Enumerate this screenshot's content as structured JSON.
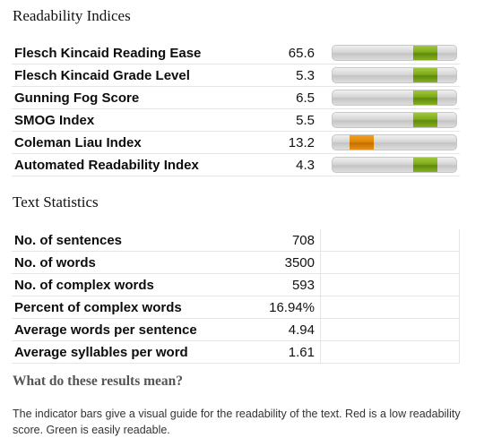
{
  "readability": {
    "title": "Readability Indices",
    "items": [
      {
        "label": "Flesch Kincaid Reading Ease",
        "value": "65.6",
        "level": 0.74,
        "color": "#7eaa1a"
      },
      {
        "label": "Flesch Kincaid Grade Level",
        "value": "5.3",
        "level": 0.74,
        "color": "#7eaa1a"
      },
      {
        "label": "Gunning Fog Score",
        "value": "6.5",
        "level": 0.74,
        "color": "#7eaa1a"
      },
      {
        "label": "SMOG Index",
        "value": "5.5",
        "level": 0.74,
        "color": "#7eaa1a"
      },
      {
        "label": "Coleman Liau Index",
        "value": "13.2",
        "level": 0.23,
        "color": "#e08808"
      },
      {
        "label": "Automated Readability Index",
        "value": "4.3",
        "level": 0.74,
        "color": "#7eaa1a"
      }
    ]
  },
  "statistics": {
    "title": "Text Statistics",
    "items": [
      {
        "label": "No. of sentences",
        "value": "708"
      },
      {
        "label": "No. of words",
        "value": "3500"
      },
      {
        "label": "No. of complex words",
        "value": "593"
      },
      {
        "label": "Percent of complex words",
        "value": "16.94%"
      },
      {
        "label": "Average words per sentence",
        "value": "4.94"
      },
      {
        "label": "Average syllables per word",
        "value": "1.61"
      }
    ]
  },
  "meaning": {
    "title": "What do these results mean?",
    "text": "The indicator bars give a visual guide for the readability of the text. Red is a low readability score. Green is easily readable."
  }
}
